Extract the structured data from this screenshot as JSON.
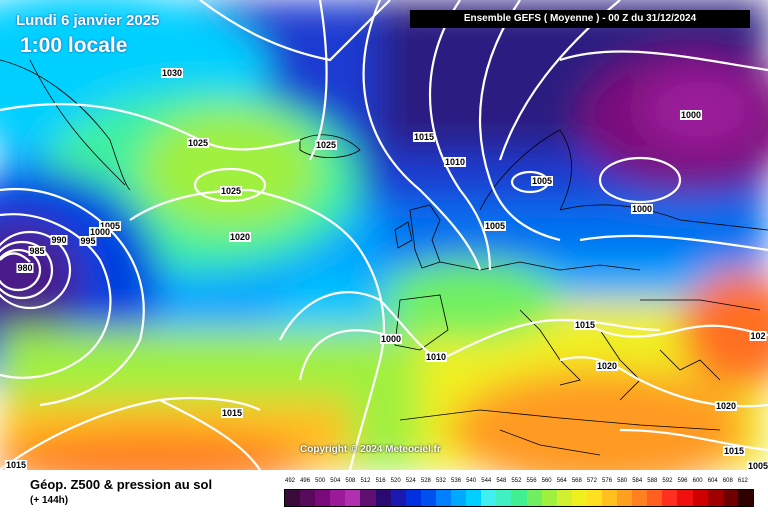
{
  "header": {
    "date": "Lundi 6 janvier 2025",
    "local_time": "1:00 locale",
    "model_run": "Ensemble GEFS  ( Moyenne )  -  00 Z du 31/12/2024"
  },
  "copyright": "Copyright © 2024 Meteociel.fr",
  "footer": {
    "field_title": "Géop. Z500 & pression au sol",
    "forecast_hour": "(+ 144h)"
  },
  "isobar_labels": [
    {
      "text": "1030"
    },
    {
      "text": "1025"
    },
    {
      "text": "1025"
    },
    {
      "text": "1025"
    },
    {
      "text": "1020"
    },
    {
      "text": "1015"
    },
    {
      "text": "1010"
    },
    {
      "text": "1005"
    },
    {
      "text": "1005"
    },
    {
      "text": "1000"
    },
    {
      "text": "1000"
    },
    {
      "text": "1000"
    },
    {
      "text": "1010"
    },
    {
      "text": "1015"
    },
    {
      "text": "1020"
    },
    {
      "text": "1020"
    },
    {
      "text": "1015"
    },
    {
      "text": "1015"
    },
    {
      "text": "1015"
    },
    {
      "text": "1005"
    },
    {
      "text": "1000"
    },
    {
      "text": "995"
    },
    {
      "text": "990"
    },
    {
      "text": "985"
    },
    {
      "text": "980"
    },
    {
      "text": "102"
    },
    {
      "text": "1005"
    }
  ],
  "legend": {
    "values": [
      "492",
      "496",
      "500",
      "504",
      "508",
      "512",
      "516",
      "520",
      "524",
      "528",
      "532",
      "536",
      "540",
      "544",
      "548",
      "552",
      "556",
      "560",
      "564",
      "568",
      "572",
      "576",
      "580",
      "584",
      "588",
      "592",
      "596",
      "600",
      "604",
      "608",
      "612"
    ],
    "colors": [
      "#3a0a3a",
      "#5a0a5a",
      "#7a0a7a",
      "#9a1a9a",
      "#b030b0",
      "#601070",
      "#2a0a70",
      "#1a1ab0",
      "#0030e0",
      "#0050f0",
      "#0080ff",
      "#00a8ff",
      "#00d0ff",
      "#40f0f0",
      "#40f0c0",
      "#40f090",
      "#70f060",
      "#a0f040",
      "#d0f030",
      "#f0f020",
      "#ffe020",
      "#ffc020",
      "#ffa020",
      "#ff8020",
      "#ff6020",
      "#ff3020",
      "#f01010",
      "#d00000",
      "#a00000",
      "#700000",
      "#300000"
    ]
  }
}
